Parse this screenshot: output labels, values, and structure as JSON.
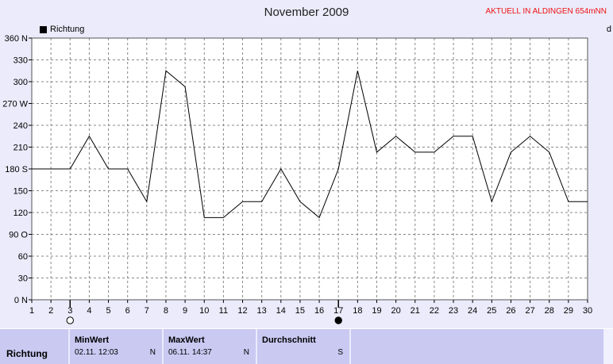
{
  "header": {
    "title": "November 2009",
    "badge": "AKTUELL IN ALDINGEN 654mNN",
    "legend_label": "Richtung",
    "edge_char": "d"
  },
  "chart_data": {
    "type": "line",
    "title": "November 2009",
    "x": [
      1,
      2,
      3,
      4,
      5,
      6,
      7,
      8,
      9,
      10,
      11,
      12,
      13,
      14,
      15,
      16,
      17,
      18,
      19,
      20,
      21,
      22,
      23,
      24,
      25,
      26,
      27,
      28,
      29,
      30
    ],
    "series": [
      {
        "name": "Richtung",
        "values": [
          180,
          180,
          180,
          225,
          180,
          180,
          135,
          315,
          293,
          113,
          113,
          135,
          135,
          180,
          135,
          113,
          180,
          315,
          203,
          225,
          203,
          203,
          225,
          225,
          135,
          203,
          225,
          203,
          135,
          135
        ]
      }
    ],
    "ylim": [
      0,
      360
    ],
    "xlim": [
      1,
      30
    ],
    "yticks": [
      {
        "value": 0,
        "label": "0 N"
      },
      {
        "value": 30,
        "label": "30"
      },
      {
        "value": 60,
        "label": "60"
      },
      {
        "value": 90,
        "label": "90 O"
      },
      {
        "value": 120,
        "label": "120"
      },
      {
        "value": 150,
        "label": "150"
      },
      {
        "value": 180,
        "label": "180 S"
      },
      {
        "value": 210,
        "label": "210"
      },
      {
        "value": 240,
        "label": "240"
      },
      {
        "value": 270,
        "label": "270 W"
      },
      {
        "value": 300,
        "label": "300"
      },
      {
        "value": 330,
        "label": "330"
      },
      {
        "value": 360,
        "label": "360 N"
      }
    ],
    "grid": true,
    "markers": [
      {
        "day": 3,
        "kind": "open-circle"
      },
      {
        "day": 17,
        "kind": "filled-circle"
      }
    ],
    "colors": {
      "line": "#000000",
      "grid": "#888888",
      "plot_bg": "#ffffff"
    }
  },
  "stats": {
    "row_label": "Richtung",
    "min": {
      "label": "MinWert",
      "value": "02.11.  12:03",
      "dir": "N"
    },
    "max": {
      "label": "MaxWert",
      "value": "06.11.  14:37",
      "dir": "N"
    },
    "avg": {
      "label": "Durchschnitt",
      "value": "",
      "dir": "S"
    }
  }
}
